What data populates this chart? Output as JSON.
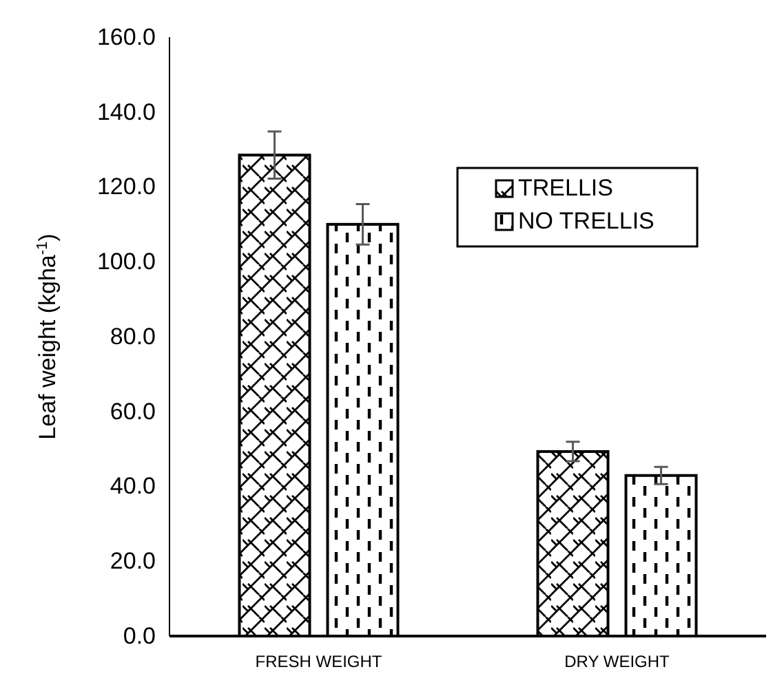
{
  "chart_data": {
    "type": "bar",
    "ylabel": "Leaf weight (kgha$^{-1}$)",
    "categories": [
      "FRESH WEIGHT",
      "DRY WEIGHT"
    ],
    "series": [
      {
        "name": "TRELLIS",
        "color": "#000000",
        "values": [
          128.5,
          49.3
        ],
        "errors": [
          6.3,
          2.6
        ]
      },
      {
        "name": "NO TRELLIS",
        "color": "#000000",
        "values": [
          110,
          42.9
        ],
        "errors": [
          5.4,
          2.3
        ]
      }
    ],
    "ylim": [
      0,
      160
    ],
    "yticks": [
      {
        "value": 0,
        "label": "0.0"
      },
      {
        "value": 20,
        "label": "20.0"
      },
      {
        "value": 40,
        "label": "40.0"
      },
      {
        "value": 60,
        "label": "60.0"
      },
      {
        "value": 80,
        "label": "80.0"
      },
      {
        "value": 100,
        "label": "100.0"
      },
      {
        "value": 120,
        "label": "120.0"
      },
      {
        "value": 140,
        "label": "140.0"
      },
      {
        "value": 160,
        "label": "160.0"
      }
    ],
    "legend": "top right",
    "grid": false
  }
}
